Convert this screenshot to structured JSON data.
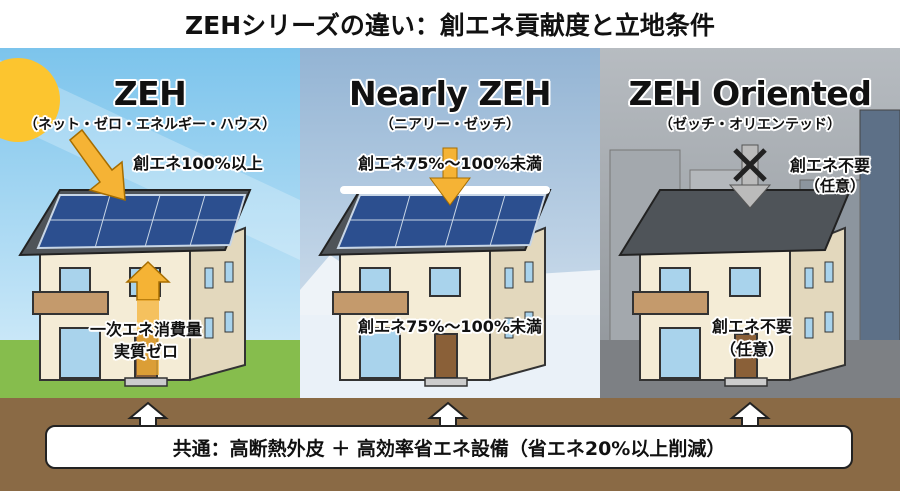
{
  "title": "ZEHシリーズの違い：創エネ貢献度と立地条件",
  "panels": [
    {
      "name": "ZEH",
      "reading": "（ネット・ゼロ・エネルギー・ハウス）",
      "roof_label": "創エネ100%以上",
      "house_label_1": "一次エネ消費量",
      "house_label_2": "実質ゼロ",
      "scene": "sunny"
    },
    {
      "name": "Nearly ZEH",
      "reading": "（ニアリー・ゼッチ）",
      "roof_label": "創エネ75%～100%未満",
      "house_label_1": "創エネ75%～100%未満",
      "scene": "snowy"
    },
    {
      "name": "ZEH Oriented",
      "reading": "（ゼッチ・オリエンテッド）",
      "roof_label_1": "創エネ不要",
      "roof_label_2": "（任意）",
      "house_label_1": "創エネ不要",
      "house_label_2": "（任意）",
      "scene": "urban"
    }
  ],
  "common": "共通：高断熱外皮 ＋ 高効率省エネ設備（省エネ20%以上削減）",
  "colors": {
    "ground": "#8a6a45",
    "arrow": "#f5b335",
    "sky": "#9fd3ef",
    "snow_sky": "#b9cde0",
    "city": "#9a9ea3"
  }
}
